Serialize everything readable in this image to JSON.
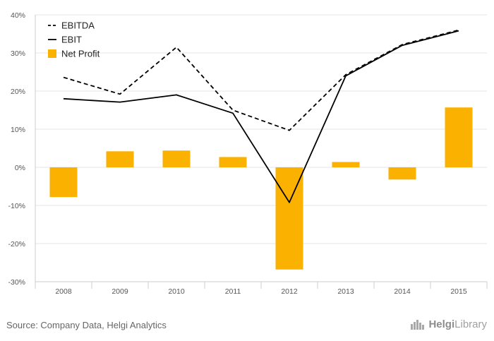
{
  "chart_data": {
    "type": "bar",
    "categories": [
      "2008",
      "2009",
      "2010",
      "2011",
      "2012",
      "2013",
      "2014",
      "2015"
    ],
    "ylim": [
      -30,
      40
    ],
    "yticks": [
      -30,
      -20,
      -10,
      0,
      10,
      20,
      30,
      40
    ],
    "ytick_labels": [
      "-30%",
      "-20%",
      "-10%",
      "0%",
      "10%",
      "20%",
      "30%",
      "40%"
    ],
    "grid": true,
    "legend_position": "top-left",
    "series": [
      {
        "name": "EBITDA",
        "kind": "line",
        "style": "dashed",
        "color": "#000000",
        "values": [
          23.6,
          19.2,
          31.5,
          15.0,
          9.7,
          24.3,
          32.2,
          36.0
        ]
      },
      {
        "name": "EBIT",
        "kind": "line",
        "style": "solid",
        "color": "#000000",
        "values": [
          18.0,
          17.1,
          19.0,
          14.2,
          -9.2,
          24.0,
          32.0,
          35.8
        ]
      },
      {
        "name": "Net Profit",
        "kind": "bar",
        "color": "#FBB100",
        "values": [
          -7.8,
          4.2,
          4.4,
          2.7,
          -26.8,
          1.4,
          -3.2,
          15.7
        ]
      }
    ]
  },
  "footer": {
    "source": "Source: Company Data, Helgi Analytics",
    "brand_helgi": "Helgi",
    "brand_library": "Library"
  },
  "icons": {
    "logo": "helgi-library-logo-icon"
  }
}
